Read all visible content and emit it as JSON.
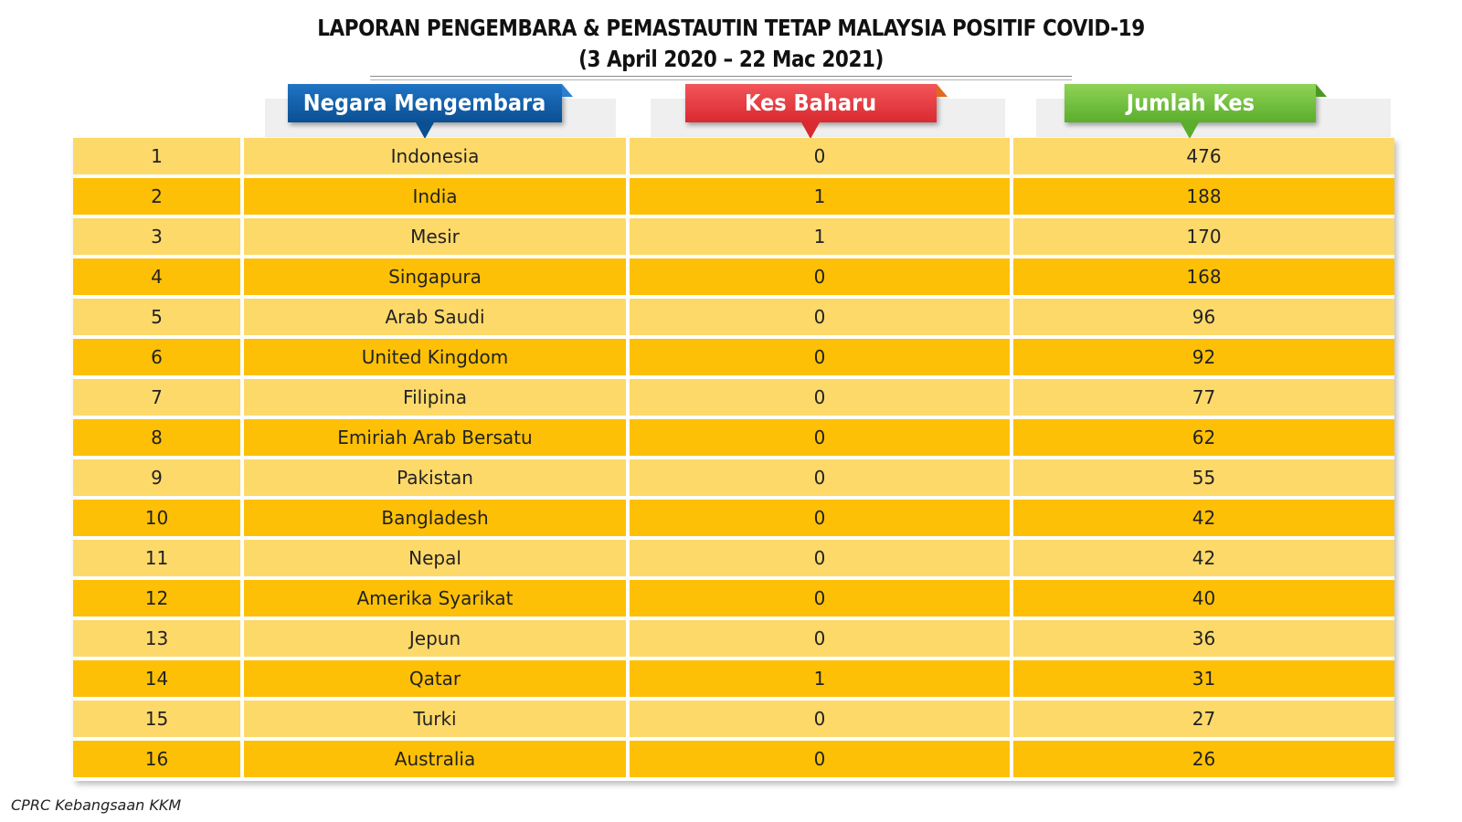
{
  "title": {
    "line1": "LAPORAN PENGEMBARA & PEMASTAUTIN TETAP MALAYSIA POSITIF COVID-19",
    "line2": "(3 April 2020 – 22 Mac 2021)"
  },
  "headers": {
    "country": "Negara Mengembara",
    "new_cases": "Kes Baharu",
    "total_cases": "Jumlah Kes"
  },
  "colors": {
    "header_country": "#0f5ea8",
    "header_new": "#e8383d",
    "header_total": "#6cbf3a",
    "row_light": "#fdd96a",
    "row_dark": "#fdc007"
  },
  "rows": [
    {
      "no": "1",
      "country": "Indonesia",
      "new": "0",
      "total": "476"
    },
    {
      "no": "2",
      "country": "India",
      "new": "1",
      "total": "188"
    },
    {
      "no": "3",
      "country": "Mesir",
      "new": "1",
      "total": "170"
    },
    {
      "no": "4",
      "country": "Singapura",
      "new": "0",
      "total": "168"
    },
    {
      "no": "5",
      "country": "Arab Saudi",
      "new": "0",
      "total": "96"
    },
    {
      "no": "6",
      "country": "United Kingdom",
      "new": "0",
      "total": "92"
    },
    {
      "no": "7",
      "country": "Filipina",
      "new": "0",
      "total": "77"
    },
    {
      "no": "8",
      "country": "Emiriah Arab Bersatu",
      "new": "0",
      "total": "62"
    },
    {
      "no": "9",
      "country": "Pakistan",
      "new": "0",
      "total": "55"
    },
    {
      "no": "10",
      "country": "Bangladesh",
      "new": "0",
      "total": "42"
    },
    {
      "no": "11",
      "country": "Nepal",
      "new": "0",
      "total": "42"
    },
    {
      "no": "12",
      "country": "Amerika Syarikat",
      "new": "0",
      "total": "40"
    },
    {
      "no": "13",
      "country": "Jepun",
      "new": "0",
      "total": "36"
    },
    {
      "no": "14",
      "country": "Qatar",
      "new": "1",
      "total": "31"
    },
    {
      "no": "15",
      "country": "Turki",
      "new": "0",
      "total": "27"
    },
    {
      "no": "16",
      "country": "Australia",
      "new": "0",
      "total": "26"
    }
  ],
  "footer": "CPRC Kebangsaan KKM"
}
